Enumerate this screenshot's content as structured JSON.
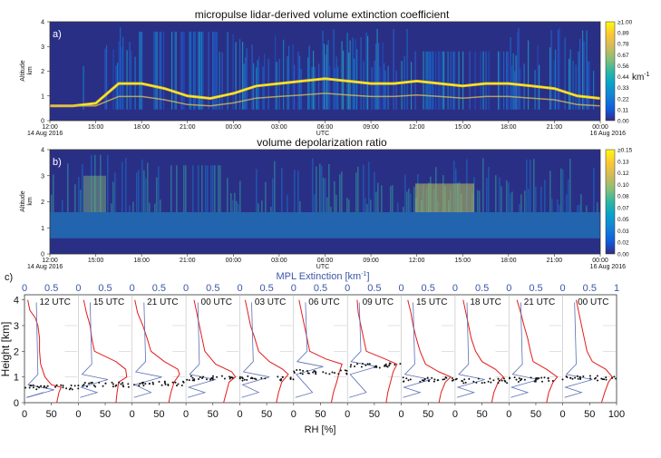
{
  "colors": {
    "background_dark": "#2a2f86",
    "extinction_colormap": [
      "#352a87",
      "#0f5cdd",
      "#1481d6",
      "#06a4ca",
      "#2eb7a4",
      "#87bf77",
      "#d1bb59",
      "#fec832",
      "#f9fb0e"
    ],
    "rh_line": "#e41a1c",
    "extinction_line": "#5a6fb5",
    "points": "#111111",
    "blue_axis": "#3b56a6"
  },
  "panel_a": {
    "letter": "a)",
    "title": "micropulse lidar-derived volume extinction coefficient",
    "ylabel_1": "Altitude",
    "ylabel_2": "km",
    "yticks": [
      "0",
      "1",
      "2",
      "3",
      "4"
    ],
    "xticks": [
      "12:00",
      "15:00",
      "18:00",
      "21:00",
      "00:00",
      "03:00",
      "06:00",
      "09:00",
      "12:00",
      "15:00",
      "18:00",
      "21:00",
      "00:00"
    ],
    "xlabel": "UTC",
    "date_start": "14 Aug 2016",
    "date_end": "16 Aug 2016",
    "colorbar_ticks": [
      "≥1.00",
      "0.89",
      "0.78",
      "0.67",
      "0.56",
      "0.44",
      "0.33",
      "0.22",
      "0.11",
      "0.00"
    ],
    "colorbar_unit": "km",
    "colorbar_unit_exp": "-1"
  },
  "panel_b": {
    "letter": "b)",
    "title": "volume depolarization ratio",
    "ylabel_1": "Altitude",
    "ylabel_2": "km",
    "yticks": [
      "0",
      "1",
      "2",
      "3",
      "4"
    ],
    "xticks": [
      "12:00",
      "15:00",
      "18:00",
      "21:00",
      "00:00",
      "03:00",
      "06:00",
      "09:00",
      "12:00",
      "15:00",
      "18:00",
      "21:00",
      "00:00"
    ],
    "xlabel": "UTC",
    "date_start": "14 Aug 2016",
    "date_end": "16 Aug 2016",
    "colorbar_ticks": [
      "≥0.15",
      "0.13",
      "0.12",
      "0.10",
      "0.08",
      "0.07",
      "0.05",
      "0.03",
      "0.02",
      "0.00"
    ]
  },
  "panel_c": {
    "letter": "c)",
    "top_axis_label": "MPL Extinction [km",
    "top_axis_label_exp": "-1",
    "top_axis_label_end": "]",
    "ylabel": "Height [km]",
    "xlabel": "RH [%]",
    "yticks": [
      "0",
      "1",
      "2",
      "3",
      "4"
    ],
    "bottom_ticks": [
      "0",
      "50",
      "0",
      "50",
      "0",
      "50",
      "0",
      "50",
      "0",
      "50",
      "0",
      "50",
      "0",
      "50",
      "0",
      "50",
      "0",
      "50",
      "0",
      "50",
      "0",
      "50",
      "100"
    ],
    "top_ticks": [
      "0",
      "0.5",
      "0",
      "0.5",
      "0",
      "0.5",
      "0",
      "0.5",
      "0",
      "0.5",
      "0",
      "0.5",
      "0",
      "0.5",
      "0",
      "0.5",
      "0",
      "0.5",
      "0",
      "0.5",
      "0",
      "0.5",
      "1"
    ],
    "profile_times": [
      "12 UTC",
      "15 UTC",
      "21 UTC",
      "00 UTC",
      "03 UTC",
      "06 UTC",
      "09 UTC",
      "15 UTC",
      "18 UTC",
      "21 UTC",
      "00 UTC"
    ]
  },
  "chart_data": [
    {
      "type": "heatmap",
      "title": "micropulse lidar-derived volume extinction coefficient",
      "ylabel": "Altitude km",
      "xlabel": "UTC",
      "x_range": [
        "12:00 14 Aug 2016",
        "00:00 16 Aug 2016"
      ],
      "ylim": [
        0,
        4
      ],
      "color_range": [
        0,
        1.0
      ],
      "color_unit": "km-1",
      "cloud_layer_height_km": [
        0.6,
        0.6,
        0.7,
        1.5,
        1.5,
        1.3,
        1.0,
        0.9,
        1.1,
        1.4,
        1.5,
        1.6,
        1.7,
        1.6,
        1.5,
        1.5,
        1.6,
        1.5,
        1.4,
        1.5,
        1.5,
        1.4,
        1.3,
        1.0,
        0.9
      ]
    },
    {
      "type": "heatmap",
      "title": "volume depolarization ratio",
      "ylabel": "Altitude km",
      "xlabel": "UTC",
      "x_range": [
        "12:00 14 Aug 2016",
        "00:00 16 Aug 2016"
      ],
      "ylim": [
        0,
        4
      ],
      "color_range": [
        0,
        0.15
      ]
    },
    {
      "type": "line",
      "xlabel": "RH [%]",
      "x2label": "MPL Extinction [km-1]",
      "ylabel": "Height [km]",
      "ylim": [
        0,
        4.2
      ],
      "xlim": [
        0,
        100
      ],
      "x2lim": [
        0,
        1
      ],
      "profiles": [
        {
          "time": "12 UTC",
          "rh_height": [
            0.0,
            0.4,
            0.6,
            0.7,
            1.0,
            1.5,
            2.0,
            2.5,
            3.0,
            3.3,
            3.6,
            4.0
          ],
          "rh": [
            60,
            64,
            68,
            50,
            38,
            30,
            28,
            28,
            25,
            20,
            10,
            6
          ]
        },
        {
          "time": "15 UTC",
          "rh_height": [
            0.0,
            0.4,
            0.8,
            1.0,
            1.3,
            1.6,
            2.0,
            2.5,
            3.0,
            3.5,
            4.0
          ],
          "rh": [
            70,
            72,
            75,
            90,
            88,
            70,
            30,
            25,
            22,
            15,
            10
          ]
        },
        {
          "time": "21 UTC",
          "rh_height": [
            0.0,
            0.4,
            0.8,
            1.1,
            1.3,
            1.6,
            2.0,
            2.5,
            3.0,
            3.5,
            4.0
          ],
          "rh": [
            68,
            72,
            78,
            88,
            85,
            60,
            35,
            28,
            20,
            10,
            5
          ]
        },
        {
          "time": "00 UTC",
          "rh_height": [
            0.0,
            0.4,
            0.8,
            1.0,
            1.2,
            1.5,
            2.0,
            2.5,
            3.0,
            3.5,
            4.0
          ],
          "rh": [
            70,
            75,
            80,
            92,
            85,
            55,
            35,
            30,
            25,
            20,
            15
          ]
        },
        {
          "time": "03 UTC",
          "rh_height": [
            0.0,
            0.4,
            0.8,
            1.1,
            1.3,
            1.6,
            2.0,
            2.5,
            3.0,
            3.5,
            4.0
          ],
          "rh": [
            68,
            72,
            78,
            90,
            80,
            55,
            35,
            28,
            20,
            15,
            10
          ]
        },
        {
          "time": "06 UTC",
          "rh_height": [
            0.0,
            0.4,
            0.8,
            1.2,
            1.5,
            1.7,
            2.0,
            2.5,
            3.0,
            3.5,
            4.0
          ],
          "rh": [
            70,
            74,
            80,
            85,
            90,
            60,
            30,
            25,
            20,
            15,
            10
          ]
        },
        {
          "time": "09 UTC",
          "rh_height": [
            0.0,
            0.4,
            0.8,
            1.2,
            1.5,
            1.7,
            2.0,
            2.5,
            3.0,
            3.5,
            4.0
          ],
          "rh": [
            72,
            75,
            80,
            85,
            92,
            70,
            35,
            30,
            25,
            20,
            18
          ]
        },
        {
          "time": "15 UTC",
          "rh_height": [
            0.0,
            0.4,
            0.8,
            1.0,
            1.2,
            1.5,
            2.0,
            2.5,
            3.0,
            3.5,
            4.0
          ],
          "rh": [
            70,
            74,
            82,
            92,
            70,
            45,
            35,
            28,
            22,
            18,
            12
          ]
        },
        {
          "time": "18 UTC",
          "rh_height": [
            0.0,
            0.4,
            0.8,
            1.0,
            1.3,
            1.6,
            2.0,
            2.5,
            3.0,
            3.5,
            4.0
          ],
          "rh": [
            68,
            72,
            80,
            90,
            75,
            50,
            38,
            30,
            25,
            20,
            15
          ]
        },
        {
          "time": "21 UTC",
          "rh_height": [
            0.0,
            0.4,
            0.8,
            1.0,
            1.3,
            1.6,
            2.0,
            2.5,
            3.0,
            3.5,
            4.0
          ],
          "rh": [
            70,
            74,
            82,
            90,
            70,
            45,
            40,
            35,
            28,
            22,
            15
          ]
        },
        {
          "time": "00 UTC",
          "rh_height": [
            0.0,
            0.4,
            0.8,
            1.0,
            1.3,
            1.6,
            2.0,
            2.5,
            3.0,
            3.5,
            4.0
          ],
          "rh": [
            72,
            78,
            85,
            92,
            80,
            55,
            45,
            40,
            35,
            30,
            25
          ]
        }
      ]
    }
  ]
}
